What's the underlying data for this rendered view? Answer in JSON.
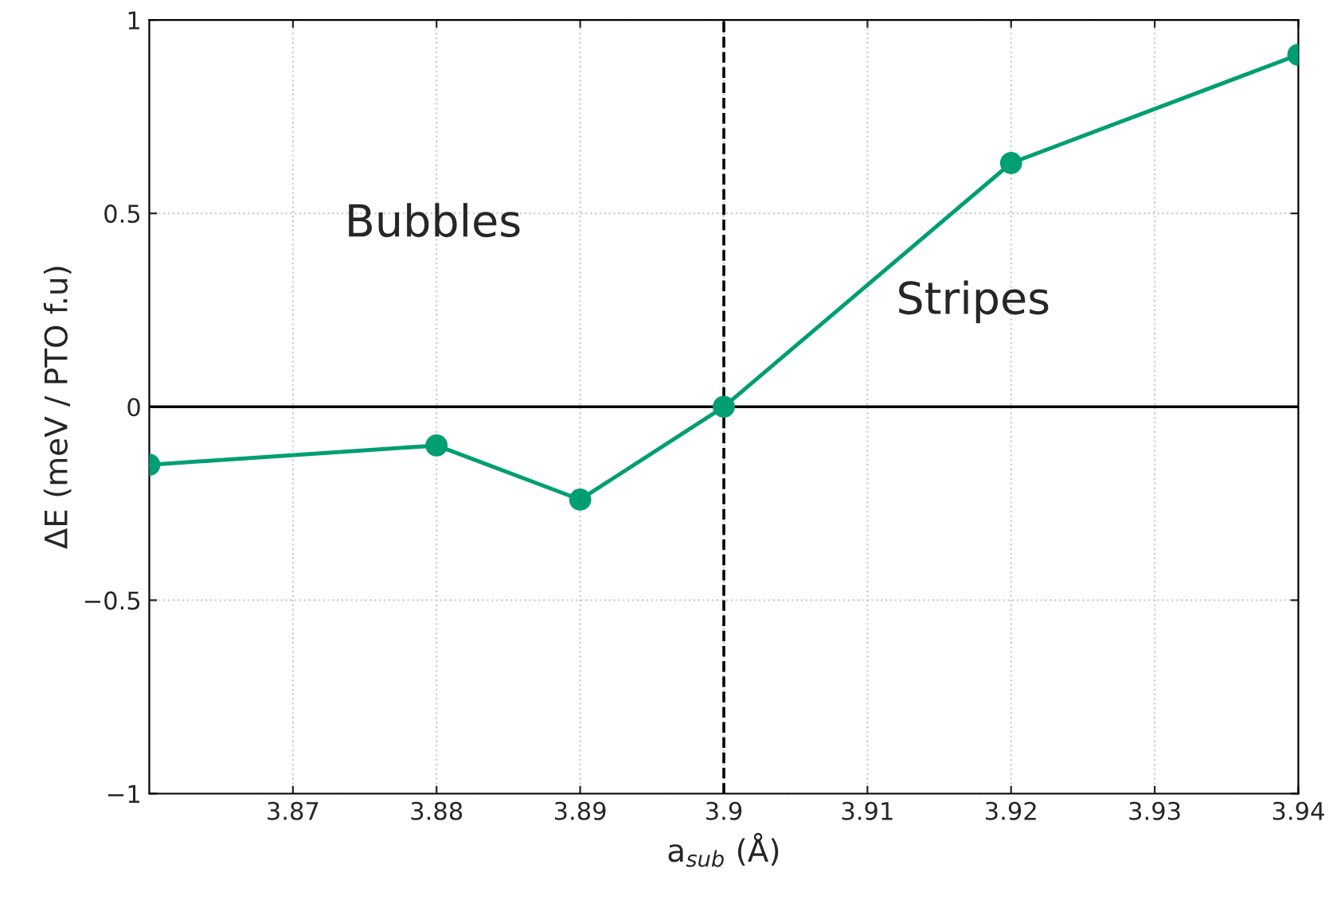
{
  "chart_data": {
    "type": "line",
    "xlabel": "a$_{sub}$ (Å)",
    "ylabel": "ΔE (meV / PTO f.u)",
    "x": [
      3.86,
      3.88,
      3.89,
      3.9,
      3.92,
      3.94
    ],
    "series": [
      {
        "color": "#009e73",
        "values": [
          -0.15,
          -0.1,
          -0.24,
          0,
          0.63,
          0.91
        ]
      }
    ],
    "marker": "circle",
    "line_style": "solid",
    "xlim": [
      3.86,
      3.94
    ],
    "xticks": [
      3.87,
      3.88,
      3.89,
      3.9,
      3.91,
      3.92,
      3.93,
      3.94
    ],
    "ylim": [
      -1,
      1
    ],
    "yticks": [
      {
        "value": -1,
        "label": "−1"
      },
      {
        "value": -0.5,
        "label": "−0.5"
      },
      0,
      0.5,
      1
    ],
    "ref_lines": [
      {
        "axis": "y",
        "value": 0,
        "color": "#000000",
        "line_style": "solid"
      },
      {
        "axis": "x",
        "value": 3.9,
        "color": "#000000",
        "line_style": "dashed"
      }
    ],
    "annotations": [
      "Bubbles",
      "Stripes"
    ],
    "grid": true,
    "legend": false
  }
}
